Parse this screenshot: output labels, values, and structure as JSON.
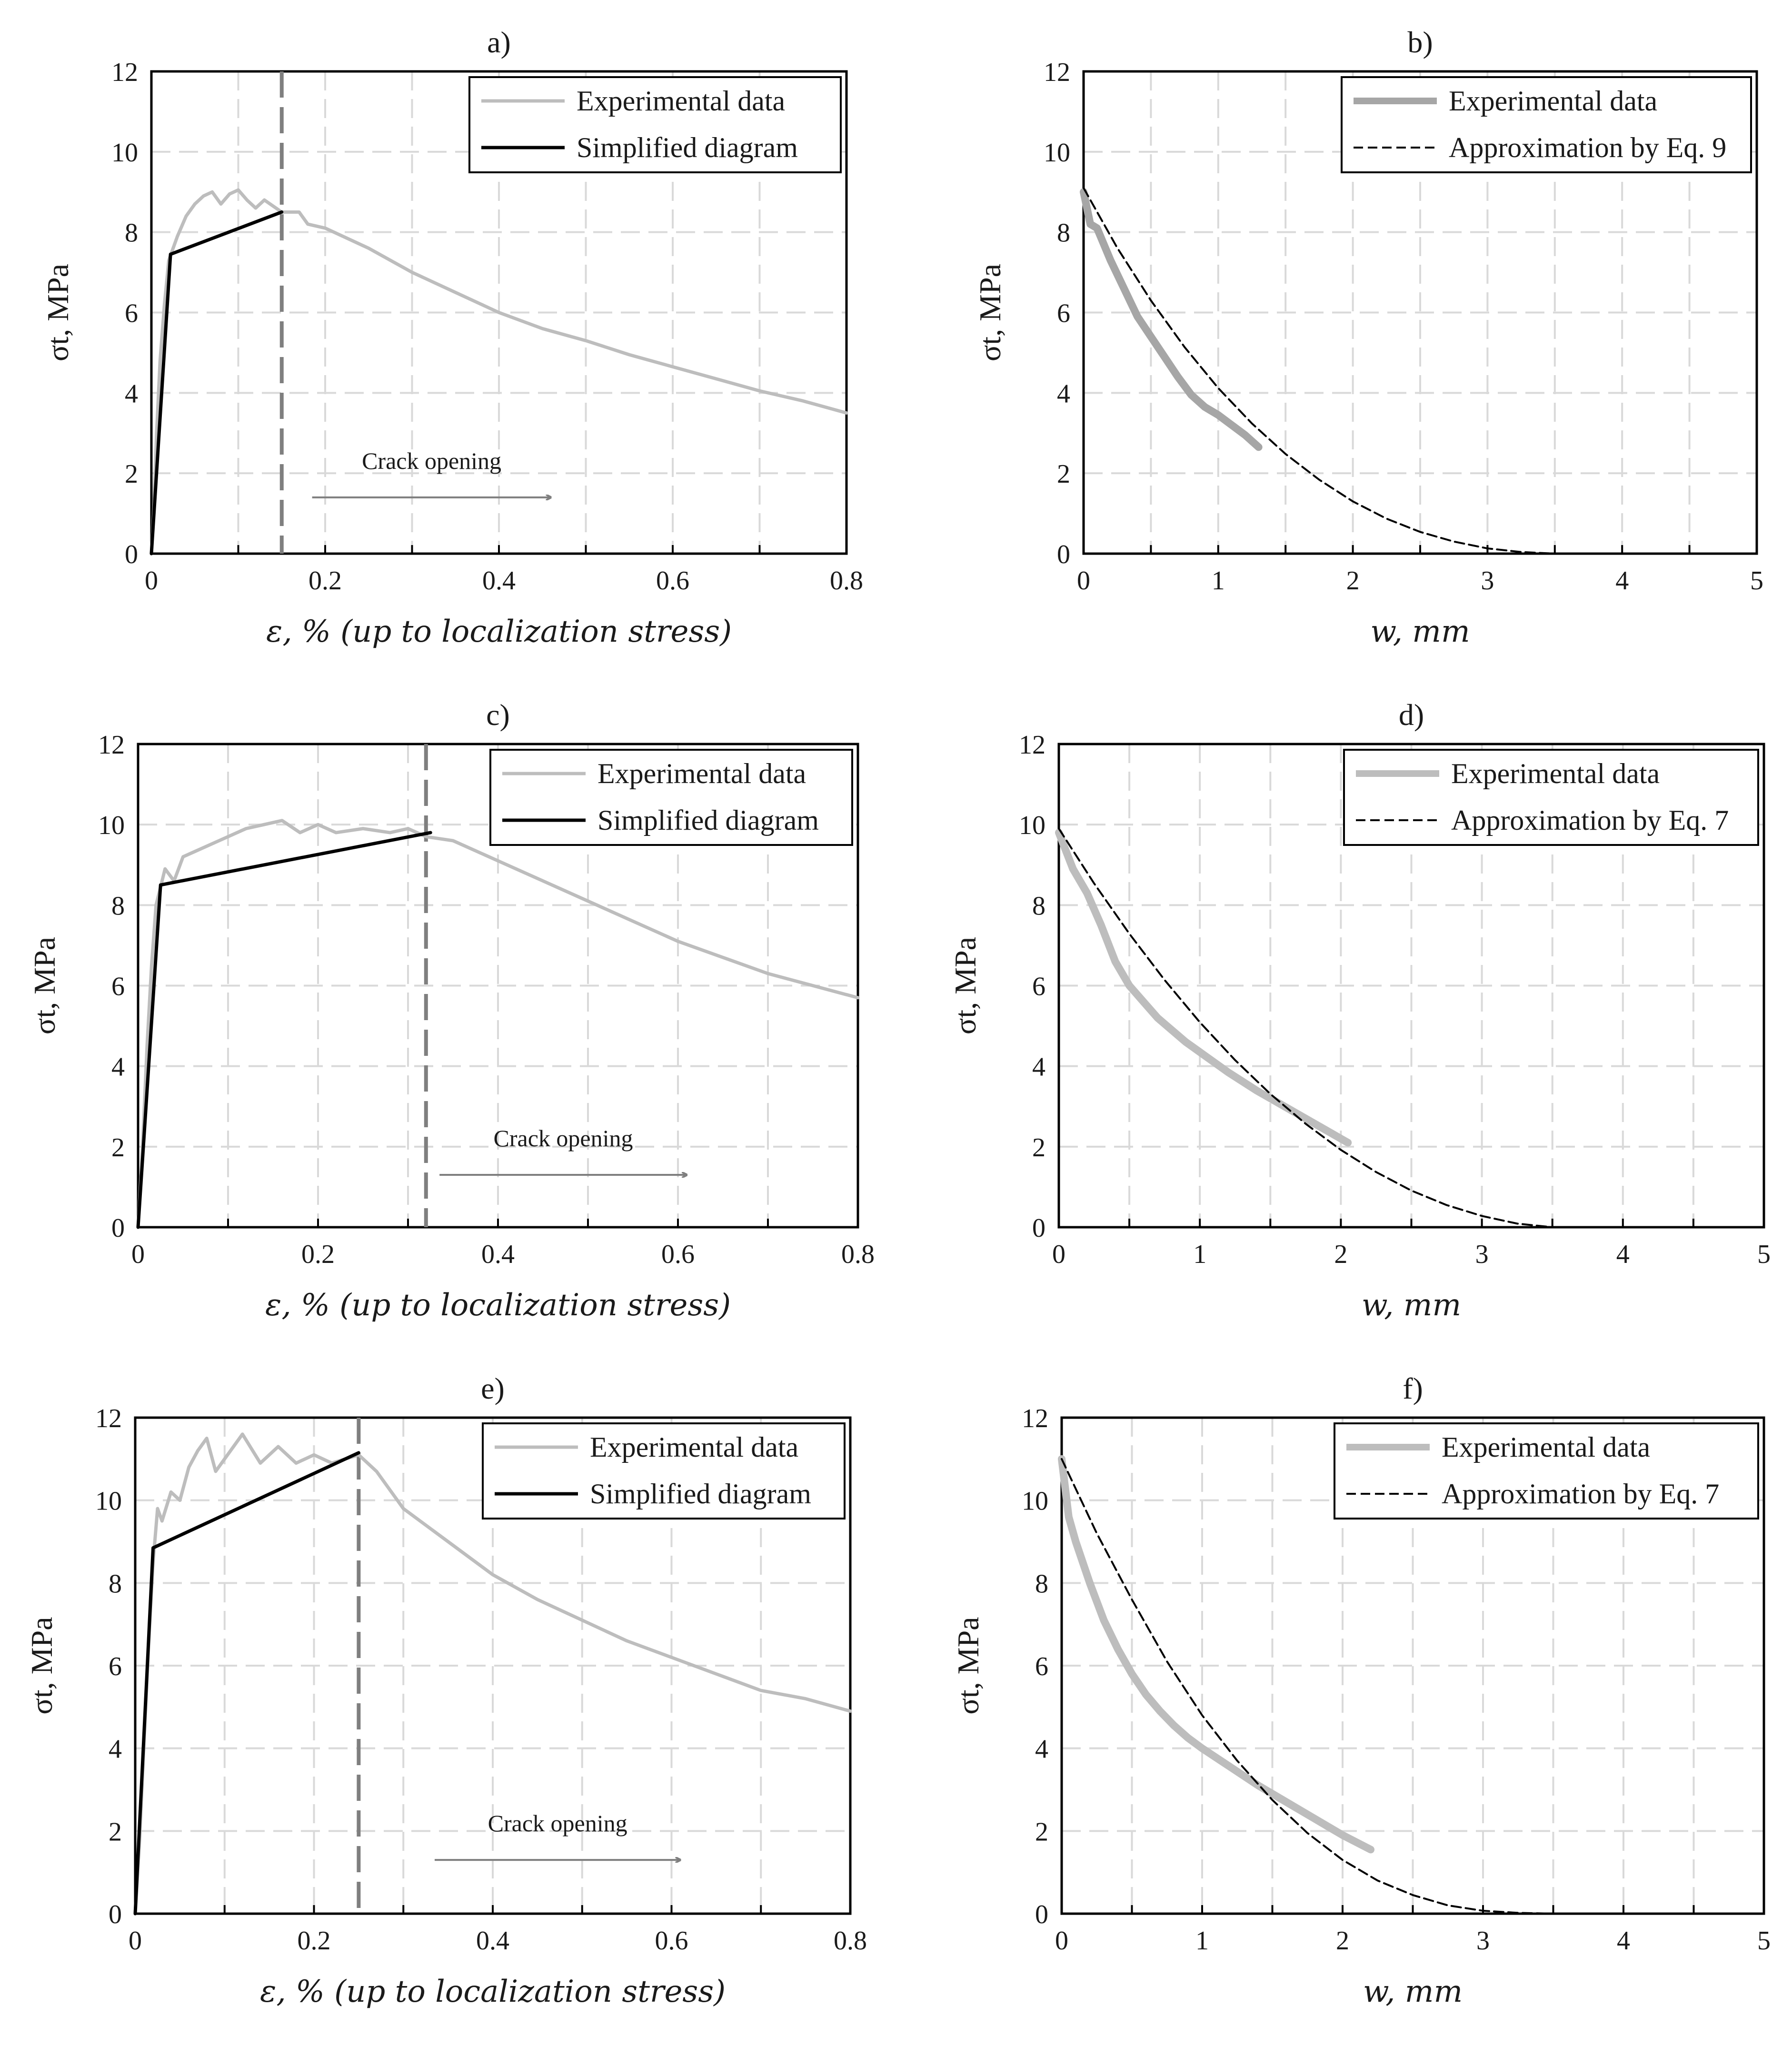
{
  "chart_data": [
    {
      "id": "a",
      "type": "line",
      "title": "a)",
      "xlabel": "ε, % (up to localization stress)",
      "ylabel": "σt, MPa",
      "xlim": [
        0,
        0.8
      ],
      "ylim": [
        0,
        12
      ],
      "xticks": [
        "0",
        "0.2",
        "0.4",
        "0.6",
        "0.8"
      ],
      "yticks": [
        "0",
        "2",
        "4",
        "6",
        "8",
        "10",
        "12"
      ],
      "grid": true,
      "legend": "top-right",
      "localization_strain": 0.15,
      "annotation": {
        "text": "Crack opening",
        "arrow_from": 0.185,
        "arrow_to": 0.46,
        "at_y": 1.4
      },
      "series": [
        {
          "name": "Experimental data",
          "color": "#bdbdbd",
          "style": "experimental",
          "points": [
            [
              0,
              0
            ],
            [
              0.003,
              1.2
            ],
            [
              0.006,
              3
            ],
            [
              0.01,
              4.8
            ],
            [
              0.015,
              6.2
            ],
            [
              0.02,
              7.3
            ],
            [
              0.03,
              7.9
            ],
            [
              0.04,
              8.4
            ],
            [
              0.05,
              8.7
            ],
            [
              0.06,
              8.9
            ],
            [
              0.07,
              9.0
            ],
            [
              0.08,
              8.7
            ],
            [
              0.09,
              8.95
            ],
            [
              0.1,
              9.05
            ],
            [
              0.11,
              8.8
            ],
            [
              0.12,
              8.6
            ],
            [
              0.13,
              8.8
            ],
            [
              0.15,
              8.5
            ],
            [
              0.17,
              8.5
            ],
            [
              0.18,
              8.2
            ],
            [
              0.2,
              8.1
            ],
            [
              0.25,
              7.6
            ],
            [
              0.3,
              7.0
            ],
            [
              0.35,
              6.5
            ],
            [
              0.4,
              6.0
            ],
            [
              0.45,
              5.6
            ],
            [
              0.5,
              5.3
            ],
            [
              0.55,
              4.95
            ],
            [
              0.6,
              4.65
            ],
            [
              0.65,
              4.35
            ],
            [
              0.7,
              4.05
            ],
            [
              0.75,
              3.8
            ],
            [
              0.8,
              3.5
            ]
          ]
        },
        {
          "name": "Simplified diagram",
          "color": "#000000",
          "style": "solid",
          "points": [
            [
              0,
              0
            ],
            [
              0.022,
              7.45
            ],
            [
              0.15,
              8.5
            ]
          ]
        }
      ]
    },
    {
      "id": "b",
      "type": "line",
      "title": "b)",
      "xlabel": "w, mm",
      "ylabel": "σt, MPa",
      "xlim": [
        0,
        5
      ],
      "ylim": [
        0,
        12
      ],
      "xticks": [
        "0",
        "1",
        "2",
        "3",
        "4",
        "5"
      ],
      "yticks": [
        "0",
        "2",
        "4",
        "6",
        "8",
        "10",
        "12"
      ],
      "grid": true,
      "legend": "top-right",
      "series": [
        {
          "name": "Experimental data",
          "color": "#a6a6a6",
          "style": "thick",
          "points": [
            [
              0,
              9.0
            ],
            [
              0.05,
              8.2
            ],
            [
              0.1,
              8.1
            ],
            [
              0.2,
              7.3
            ],
            [
              0.3,
              6.6
            ],
            [
              0.4,
              5.9
            ],
            [
              0.5,
              5.4
            ],
            [
              0.6,
              4.9
            ],
            [
              0.7,
              4.4
            ],
            [
              0.8,
              3.95
            ],
            [
              0.9,
              3.65
            ],
            [
              1.0,
              3.45
            ],
            [
              1.1,
              3.2
            ],
            [
              1.2,
              2.95
            ],
            [
              1.3,
              2.65
            ]
          ]
        },
        {
          "name": "Approximation by Eq. 9",
          "color": "#000000",
          "style": "dashed",
          "points": [
            [
              0,
              9.1
            ],
            [
              0.25,
              7.61
            ],
            [
              0.5,
              6.3
            ],
            [
              0.75,
              5.14
            ],
            [
              1.0,
              4.12
            ],
            [
              1.25,
              3.24
            ],
            [
              1.5,
              2.48
            ],
            [
              1.75,
              1.84
            ],
            [
              2.0,
              1.3
            ],
            [
              2.25,
              0.87
            ],
            [
              2.5,
              0.54
            ],
            [
              2.75,
              0.3
            ],
            [
              3.0,
              0.13
            ],
            [
              3.25,
              0.04
            ],
            [
              3.5,
              0.0
            ]
          ]
        }
      ]
    },
    {
      "id": "c",
      "type": "line",
      "title": "c)",
      "xlabel": "ε, % (up to localization stress)",
      "ylabel": "σt, MPa",
      "xlim": [
        0,
        0.8
      ],
      "ylim": [
        0,
        12
      ],
      "xticks": [
        "0",
        "0.2",
        "0.4",
        "0.6",
        "0.8"
      ],
      "yticks": [
        "0",
        "2",
        "4",
        "6",
        "8",
        "10",
        "12"
      ],
      "grid": true,
      "legend": "top-right",
      "localization_strain": 0.32,
      "annotation": {
        "text": "Crack opening",
        "arrow_from": 0.335,
        "arrow_to": 0.61,
        "at_y": 1.3
      },
      "series": [
        {
          "name": "Experimental data",
          "color": "#bdbdbd",
          "style": "experimental",
          "points": [
            [
              0,
              0
            ],
            [
              0.005,
              2
            ],
            [
              0.01,
              4.5
            ],
            [
              0.015,
              6.5
            ],
            [
              0.02,
              8.0
            ],
            [
              0.03,
              8.9
            ],
            [
              0.04,
              8.6
            ],
            [
              0.05,
              9.2
            ],
            [
              0.06,
              9.3
            ],
            [
              0.08,
              9.5
            ],
            [
              0.1,
              9.7
            ],
            [
              0.12,
              9.9
            ],
            [
              0.14,
              10.0
            ],
            [
              0.16,
              10.1
            ],
            [
              0.18,
              9.8
            ],
            [
              0.2,
              10.0
            ],
            [
              0.22,
              9.8
            ],
            [
              0.25,
              9.9
            ],
            [
              0.28,
              9.8
            ],
            [
              0.3,
              9.9
            ],
            [
              0.32,
              9.7
            ],
            [
              0.35,
              9.6
            ],
            [
              0.4,
              9.1
            ],
            [
              0.45,
              8.6
            ],
            [
              0.5,
              8.1
            ],
            [
              0.55,
              7.6
            ],
            [
              0.6,
              7.1
            ],
            [
              0.65,
              6.7
            ],
            [
              0.7,
              6.3
            ],
            [
              0.75,
              6.0
            ],
            [
              0.8,
              5.7
            ]
          ]
        },
        {
          "name": "Simplified diagram",
          "color": "#000000",
          "style": "solid",
          "points": [
            [
              0,
              0
            ],
            [
              0.025,
              8.5
            ],
            [
              0.325,
              9.8
            ]
          ]
        }
      ]
    },
    {
      "id": "d",
      "type": "line",
      "title": "d)",
      "xlabel": "w, mm",
      "ylabel": "σt, MPa",
      "xlim": [
        0,
        5
      ],
      "ylim": [
        0,
        12
      ],
      "xticks": [
        "0",
        "1",
        "2",
        "3",
        "4",
        "5"
      ],
      "yticks": [
        "0",
        "2",
        "4",
        "6",
        "8",
        "10",
        "12"
      ],
      "grid": true,
      "legend": "top-right",
      "series": [
        {
          "name": "Experimental data",
          "color": "#bdbdbd",
          "style": "thick",
          "points": [
            [
              0,
              9.8
            ],
            [
              0.1,
              8.9
            ],
            [
              0.2,
              8.3
            ],
            [
              0.3,
              7.5
            ],
            [
              0.4,
              6.6
            ],
            [
              0.5,
              6.0
            ],
            [
              0.6,
              5.6
            ],
            [
              0.7,
              5.2
            ],
            [
              0.8,
              4.9
            ],
            [
              0.9,
              4.6
            ],
            [
              1.0,
              4.35
            ],
            [
              1.2,
              3.85
            ],
            [
              1.4,
              3.4
            ],
            [
              1.6,
              3.0
            ],
            [
              1.8,
              2.6
            ],
            [
              1.9,
              2.4
            ],
            [
              2.0,
              2.2
            ],
            [
              2.05,
              2.1
            ]
          ]
        },
        {
          "name": "Approximation by Eq. 7",
          "color": "#000000",
          "style": "dashed",
          "points": [
            [
              0,
              9.9
            ],
            [
              0.25,
              8.54
            ],
            [
              0.5,
              7.29
            ],
            [
              0.75,
              6.14
            ],
            [
              1.0,
              5.09
            ],
            [
              1.25,
              4.15
            ],
            [
              1.5,
              3.31
            ],
            [
              1.75,
              2.57
            ],
            [
              2.0,
              1.92
            ],
            [
              2.25,
              1.37
            ],
            [
              2.5,
              0.91
            ],
            [
              2.75,
              0.55
            ],
            [
              3.0,
              0.28
            ],
            [
              3.25,
              0.09
            ],
            [
              3.5,
              0.0
            ]
          ]
        }
      ]
    },
    {
      "id": "e",
      "type": "line",
      "title": "e)",
      "xlabel": "ε, % (up to localization stress)",
      "ylabel": "σt, MPa",
      "xlim": [
        0,
        0.8
      ],
      "ylim": [
        0,
        12
      ],
      "xticks": [
        "0",
        "0.2",
        "0.4",
        "0.6",
        "0.8"
      ],
      "yticks": [
        "0",
        "2",
        "4",
        "6",
        "8",
        "10",
        "12"
      ],
      "grid": true,
      "legend": "top-right",
      "localization_strain": 0.25,
      "annotation": {
        "text": "Crack opening",
        "arrow_from": 0.335,
        "arrow_to": 0.61,
        "at_y": 1.3
      },
      "series": [
        {
          "name": "Experimental data",
          "color": "#bdbdbd",
          "style": "experimental",
          "points": [
            [
              0,
              0
            ],
            [
              0.005,
              1.8
            ],
            [
              0.01,
              4.2
            ],
            [
              0.015,
              6.5
            ],
            [
              0.02,
              8.5
            ],
            [
              0.025,
              9.8
            ],
            [
              0.03,
              9.5
            ],
            [
              0.04,
              10.2
            ],
            [
              0.05,
              10.0
            ],
            [
              0.06,
              10.8
            ],
            [
              0.07,
              11.2
            ],
            [
              0.08,
              11.5
            ],
            [
              0.09,
              10.7
            ],
            [
              0.1,
              11.0
            ],
            [
              0.12,
              11.6
            ],
            [
              0.14,
              10.9
            ],
            [
              0.16,
              11.3
            ],
            [
              0.18,
              10.9
            ],
            [
              0.2,
              11.1
            ],
            [
              0.22,
              10.9
            ],
            [
              0.25,
              11.1
            ],
            [
              0.27,
              10.7
            ],
            [
              0.3,
              9.8
            ],
            [
              0.35,
              9.0
            ],
            [
              0.4,
              8.2
            ],
            [
              0.45,
              7.6
            ],
            [
              0.5,
              7.1
            ],
            [
              0.55,
              6.6
            ],
            [
              0.6,
              6.2
            ],
            [
              0.65,
              5.8
            ],
            [
              0.7,
              5.4
            ],
            [
              0.75,
              5.2
            ],
            [
              0.8,
              4.9
            ]
          ]
        },
        {
          "name": "Simplified diagram",
          "color": "#000000",
          "style": "solid",
          "points": [
            [
              0,
              0
            ],
            [
              0.02,
              8.85
            ],
            [
              0.25,
              11.15
            ]
          ]
        }
      ]
    },
    {
      "id": "f",
      "type": "line",
      "title": "f)",
      "xlabel": "w, mm",
      "ylabel": "σt, MPa",
      "xlim": [
        0,
        5
      ],
      "ylim": [
        0,
        12
      ],
      "xticks": [
        "0",
        "1",
        "2",
        "3",
        "4",
        "5"
      ],
      "yticks": [
        "0",
        "2",
        "4",
        "6",
        "8",
        "10",
        "12"
      ],
      "grid": true,
      "legend": "top-right",
      "series": [
        {
          "name": "Experimental data",
          "color": "#bdbdbd",
          "style": "thick",
          "points": [
            [
              0,
              11.0
            ],
            [
              0.05,
              9.6
            ],
            [
              0.1,
              9.0
            ],
            [
              0.2,
              8.0
            ],
            [
              0.3,
              7.1
            ],
            [
              0.4,
              6.4
            ],
            [
              0.5,
              5.8
            ],
            [
              0.6,
              5.3
            ],
            [
              0.7,
              4.9
            ],
            [
              0.8,
              4.55
            ],
            [
              0.9,
              4.25
            ],
            [
              1.0,
              4.0
            ],
            [
              1.2,
              3.55
            ],
            [
              1.4,
              3.1
            ],
            [
              1.6,
              2.7
            ],
            [
              1.8,
              2.3
            ],
            [
              2.0,
              1.9
            ],
            [
              2.2,
              1.55
            ]
          ]
        },
        {
          "name": "Approximation by Eq. 7",
          "color": "#000000",
          "style": "dashed",
          "points": [
            [
              0,
              11.0
            ],
            [
              0.25,
              9.2
            ],
            [
              0.5,
              7.6
            ],
            [
              0.75,
              6.1
            ],
            [
              1.0,
              4.8
            ],
            [
              1.25,
              3.7
            ],
            [
              1.5,
              2.75
            ],
            [
              1.75,
              1.95
            ],
            [
              2.0,
              1.3
            ],
            [
              2.25,
              0.8
            ],
            [
              2.5,
              0.45
            ],
            [
              2.75,
              0.2
            ],
            [
              3.0,
              0.07
            ],
            [
              3.25,
              0.02
            ],
            [
              3.5,
              0.0
            ]
          ]
        }
      ]
    }
  ]
}
